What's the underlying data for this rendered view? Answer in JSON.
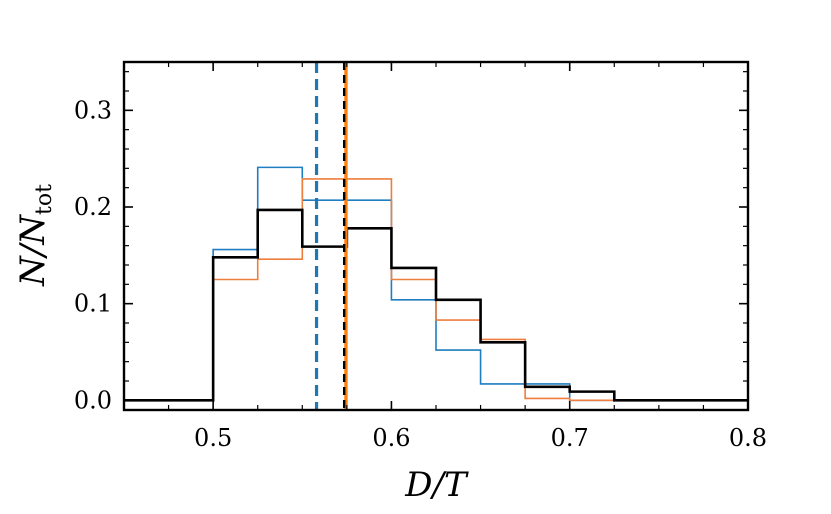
{
  "chart_data": {
    "type": "histogram-step",
    "title": "",
    "xlabel": "D/T",
    "ylabel": {
      "main": "N/N",
      "subscript": "tot"
    },
    "xlim": [
      0.45,
      0.8
    ],
    "ylim": [
      -0.01,
      0.35
    ],
    "xticks": [
      0.5,
      0.6,
      0.7,
      0.8
    ],
    "xtick_labels": [
      "0.5",
      "0.6",
      "0.7",
      "0.8"
    ],
    "yticks": [
      0.0,
      0.1,
      0.2,
      0.3
    ],
    "ytick_labels": [
      "0.0",
      "0.1",
      "0.2",
      "0.3"
    ],
    "bin_edges": [
      0.45,
      0.5,
      0.525,
      0.55,
      0.575,
      0.6,
      0.625,
      0.65,
      0.675,
      0.7,
      0.725,
      0.8
    ],
    "series": [
      {
        "name": "black",
        "color": "#000000",
        "line_width": 2.6,
        "values": [
          0.0,
          0.148,
          0.197,
          0.159,
          0.178,
          0.137,
          0.104,
          0.06,
          0.014,
          0.009,
          0.0
        ]
      },
      {
        "name": "orange",
        "color": "#ee7d3e",
        "line_width": 1.6,
        "values": [
          0.0,
          0.125,
          0.146,
          0.229,
          0.229,
          0.125,
          0.083,
          0.063,
          0.002,
          0.0,
          0.0
        ]
      },
      {
        "name": "blue",
        "color": "#1f7ec1",
        "line_width": 1.6,
        "values": [
          0.0,
          0.156,
          0.241,
          0.207,
          0.207,
          0.104,
          0.052,
          0.017,
          0.017,
          0.0,
          0.0
        ]
      }
    ],
    "vlines": [
      {
        "name": "blue-mean",
        "x": 0.558,
        "color": "#1f77b4",
        "style": "dashed"
      },
      {
        "name": "orange-mean",
        "x": 0.5745,
        "color": "#ff7f0e",
        "style": "solid"
      },
      {
        "name": "black-mean",
        "x": 0.5735,
        "color": "#000000",
        "style": "dashed"
      }
    ]
  }
}
